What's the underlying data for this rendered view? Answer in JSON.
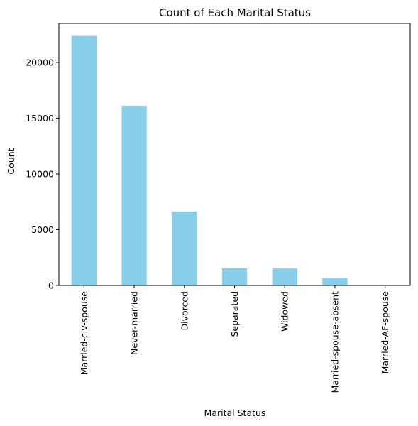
{
  "chart_data": {
    "type": "bar",
    "title": "Count of Each Marital Status",
    "xlabel": "Marital Status",
    "ylabel": "Count",
    "categories": [
      "Married-civ-spouse",
      "Never-married",
      "Divorced",
      "Separated",
      "Widowed",
      "Married-spouse-absent",
      "Married-AF-spouse"
    ],
    "values": [
      22379,
      16117,
      6633,
      1530,
      1518,
      628,
      37
    ],
    "ylim": [
      0,
      23500
    ],
    "yticks": [
      0,
      5000,
      10000,
      15000,
      20000
    ],
    "ytick_labels": [
      "0",
      "5000",
      "10000",
      "15000",
      "20000"
    ],
    "bar_color": "#87ceeb",
    "grid": false,
    "legend": "none"
  }
}
